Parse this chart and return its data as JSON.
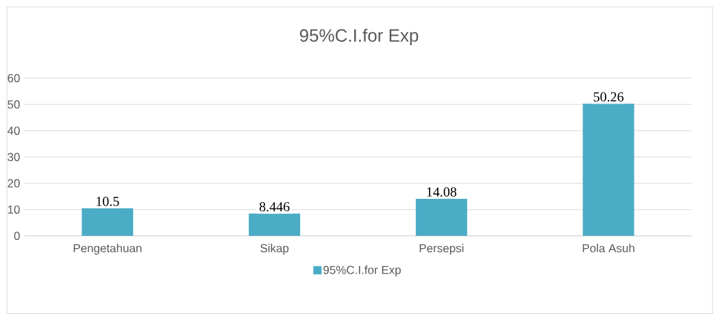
{
  "chart_data": {
    "type": "bar",
    "title": "95%C.I.for Exp",
    "categories": [
      "Pengetahuan",
      "Sikap",
      "Persepsi",
      "Pola Asuh"
    ],
    "series": [
      {
        "name": "95%C.I.for Exp",
        "color": "#4bacc6",
        "values": [
          10.5,
          8.446,
          14.08,
          50.26
        ]
      }
    ],
    "ylim": [
      0,
      60
    ],
    "yticks": [
      0,
      10,
      20,
      30,
      40,
      50,
      60
    ],
    "grid": "y",
    "legend": "bottom",
    "data_labels": true
  }
}
